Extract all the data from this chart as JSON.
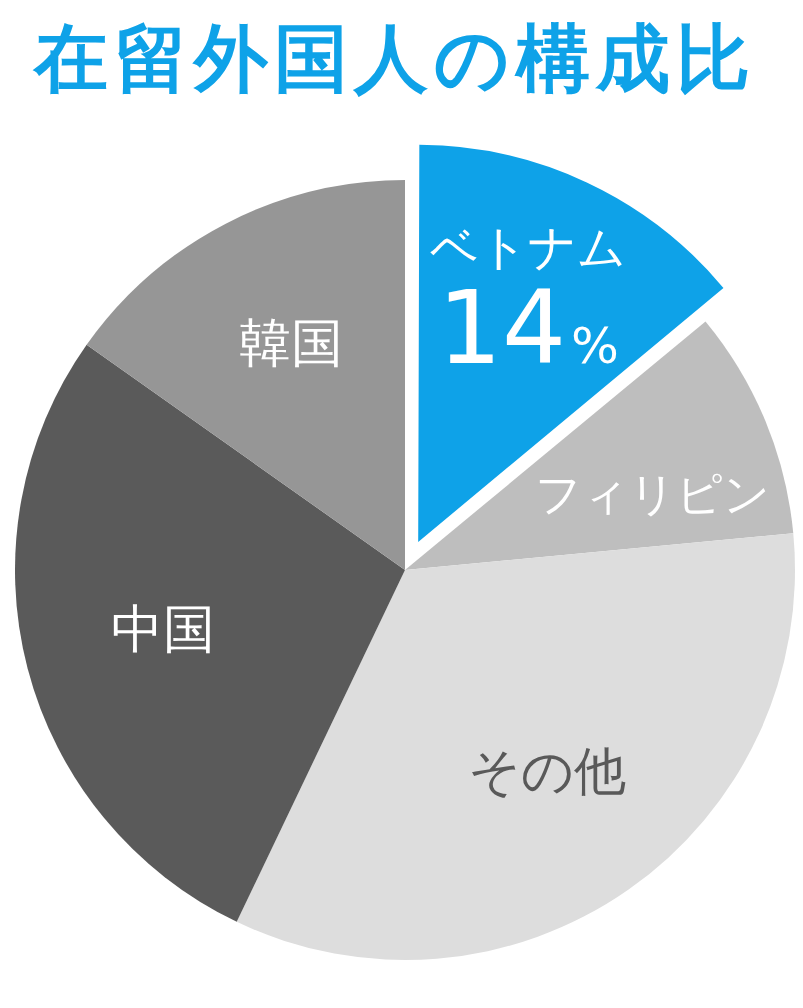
{
  "chart_data": {
    "type": "pie",
    "title": "在留外国人の構成比",
    "categories": [
      "ベトナム",
      "フィリピン",
      "その他",
      "中国",
      "韓国"
    ],
    "values": [
      14,
      9.5,
      33.6,
      27.7,
      15.2
    ],
    "colors": [
      "#0ea2e8",
      "#bebebe",
      "#dddddd",
      "#5a5a5a",
      "#969696"
    ],
    "value_labels": [
      "14%",
      null,
      null,
      null,
      null
    ]
  }
}
